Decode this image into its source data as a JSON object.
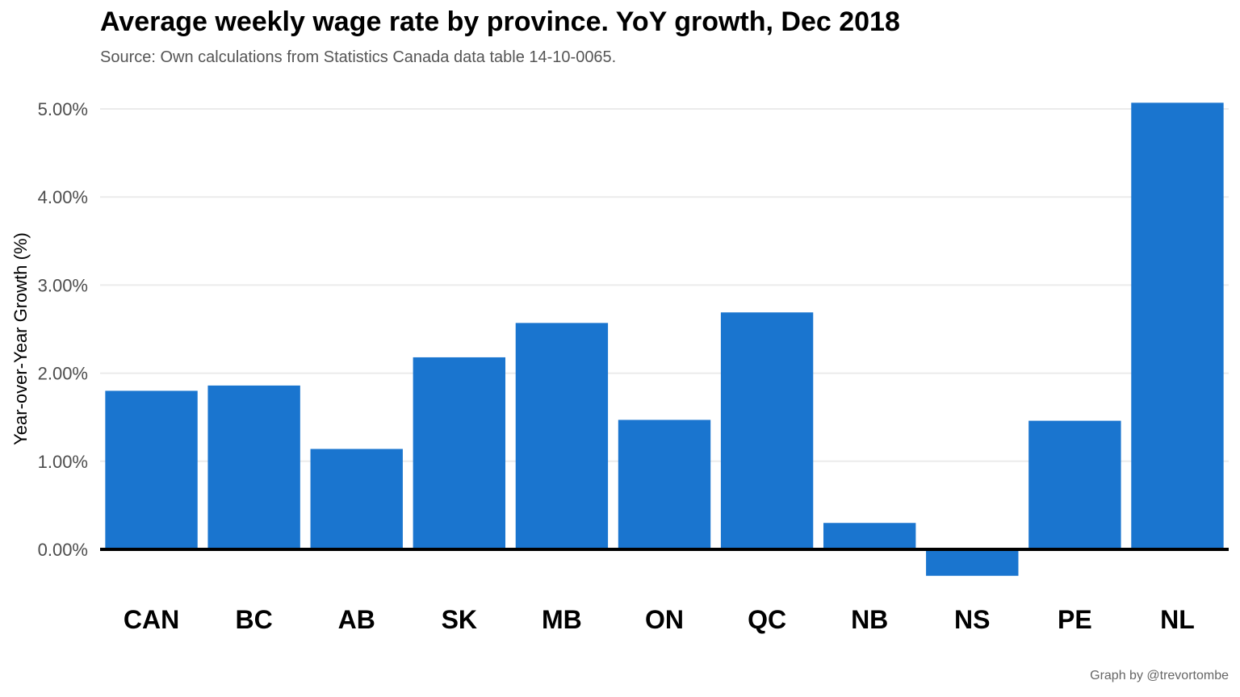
{
  "chart_data": {
    "type": "bar",
    "title": "Average weekly wage rate by province. YoY growth, Dec 2018",
    "subtitle": "Source: Own calculations from Statistics Canada data table 14-10-0065.",
    "caption": "Graph by @trevortombe",
    "xlabel": "",
    "ylabel": "Year-over-Year Growth (%)",
    "categories": [
      "CAN",
      "BC",
      "AB",
      "SK",
      "MB",
      "ON",
      "QC",
      "NB",
      "NS",
      "PE",
      "NL"
    ],
    "values": [
      1.8,
      1.86,
      1.14,
      2.18,
      2.57,
      1.47,
      2.69,
      0.3,
      -0.3,
      1.46,
      5.07
    ],
    "ylim": [
      -0.45,
      5.15
    ],
    "yticks": [
      0,
      1,
      2,
      3,
      4,
      5
    ],
    "ytick_labels": [
      "0.00%",
      "1.00%",
      "2.00%",
      "3.00%",
      "4.00%",
      "5.00%"
    ],
    "grid": "horizontal",
    "legend": "none",
    "bar_color": "#1a75cf",
    "zero_line_color": "#000000",
    "grid_color": "#ebebeb"
  }
}
